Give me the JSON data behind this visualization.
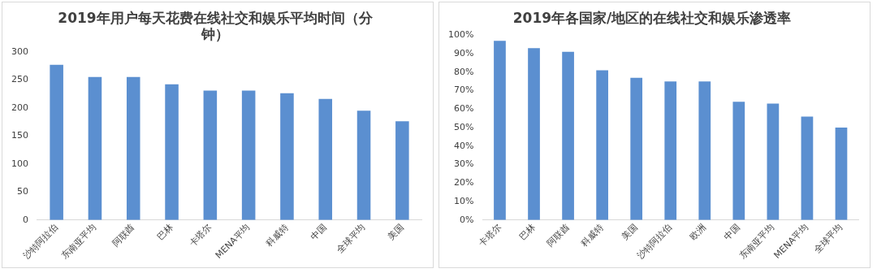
{
  "chart_data": [
    {
      "type": "bar",
      "title": "2019年用户每天花费在线社交和娱乐平均时间（分钟）",
      "categories": [
        "沙特阿拉伯",
        "东南亚平均",
        "阿联酋",
        "巴林",
        "卡塔尔",
        "MENA平均",
        "科威特",
        "中国",
        "全球平均",
        "美国"
      ],
      "values": [
        277,
        255,
        255,
        242,
        231,
        231,
        226,
        216,
        195,
        176
      ],
      "color": "#5b8fd0",
      "ylim": [
        0,
        300
      ],
      "yticks": [
        0,
        50,
        100,
        150,
        200,
        250,
        300
      ],
      "grid": false,
      "legend": false
    },
    {
      "type": "bar",
      "title": "2019年各国家/地区的在线社交和娱乐渗透率",
      "categories": [
        "卡塔尔",
        "巴林",
        "阿联酋",
        "科威特",
        "美国",
        "沙特阿拉伯",
        "欧洲",
        "中国",
        "东南亚平均",
        "MENA平均",
        "全球平均"
      ],
      "values": [
        97,
        93,
        91,
        81,
        77,
        75,
        75,
        64,
        63,
        56,
        50
      ],
      "color": "#5b8fd0",
      "ylim": [
        0,
        100
      ],
      "yticks": [
        {
          "value": 0,
          "label": "0%"
        },
        {
          "value": 10,
          "label": "10%"
        },
        {
          "value": 20,
          "label": "20%"
        },
        {
          "value": 30,
          "label": "30%"
        },
        {
          "value": 40,
          "label": "40%"
        },
        {
          "value": 50,
          "label": "50%"
        },
        {
          "value": 60,
          "label": "60%"
        },
        {
          "value": 70,
          "label": "70%"
        },
        {
          "value": 80,
          "label": "80%"
        },
        {
          "value": 90,
          "label": "90%"
        },
        {
          "value": 100,
          "label": "100%"
        }
      ],
      "grid": false,
      "legend": false
    }
  ]
}
